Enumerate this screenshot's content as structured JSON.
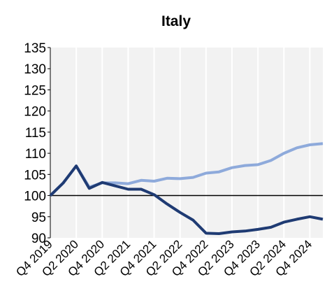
{
  "chart_data": {
    "type": "line",
    "title": "Italy",
    "xlabel": "",
    "ylabel": "",
    "ylim": [
      90,
      135
    ],
    "yticks": [
      90,
      95,
      100,
      105,
      110,
      115,
      120,
      125,
      130,
      135
    ],
    "grid": "vertical",
    "reference_line": 100,
    "x": [
      "Q4 2019",
      "Q1 2020",
      "Q2 2020",
      "Q3 2020",
      "Q4 2020",
      "Q1 2021",
      "Q2 2021",
      "Q3 2021",
      "Q4 2021",
      "Q1 2022",
      "Q2 2022",
      "Q3 2022",
      "Q4 2022",
      "Q1 2023",
      "Q2 2023",
      "Q3 2023",
      "Q4 2023",
      "Q1 2024",
      "Q2 2024",
      "Q3 2024",
      "Q4 2024",
      "Q1 2025"
    ],
    "xtick_labels": [
      "Q4 2019",
      "Q2 2020",
      "Q4 2020",
      "Q2 2021",
      "Q4 2021",
      "Q2 2022",
      "Q4 2022",
      "Q2 2023",
      "Q4 2023",
      "Q2 2024",
      "Q4 2024"
    ],
    "series": [
      {
        "color": "#8eaadb",
        "values": [
          100,
          103,
          107,
          102,
          103,
          103,
          102.8,
          103.6,
          103.4,
          104.1,
          104,
          104.3,
          105.3,
          105.6,
          106.6,
          107.1,
          107.3,
          108.3,
          110,
          111.3,
          112,
          112.3
        ]
      },
      {
        "color": "#1f3b73",
        "values": [
          100,
          103,
          107,
          101.7,
          103.1,
          102.3,
          101.5,
          101.5,
          100.2,
          98,
          96,
          94.2,
          91.1,
          91,
          91.4,
          91.6,
          92,
          92.5,
          93.7,
          94.4,
          95,
          94.4
        ]
      }
    ]
  }
}
